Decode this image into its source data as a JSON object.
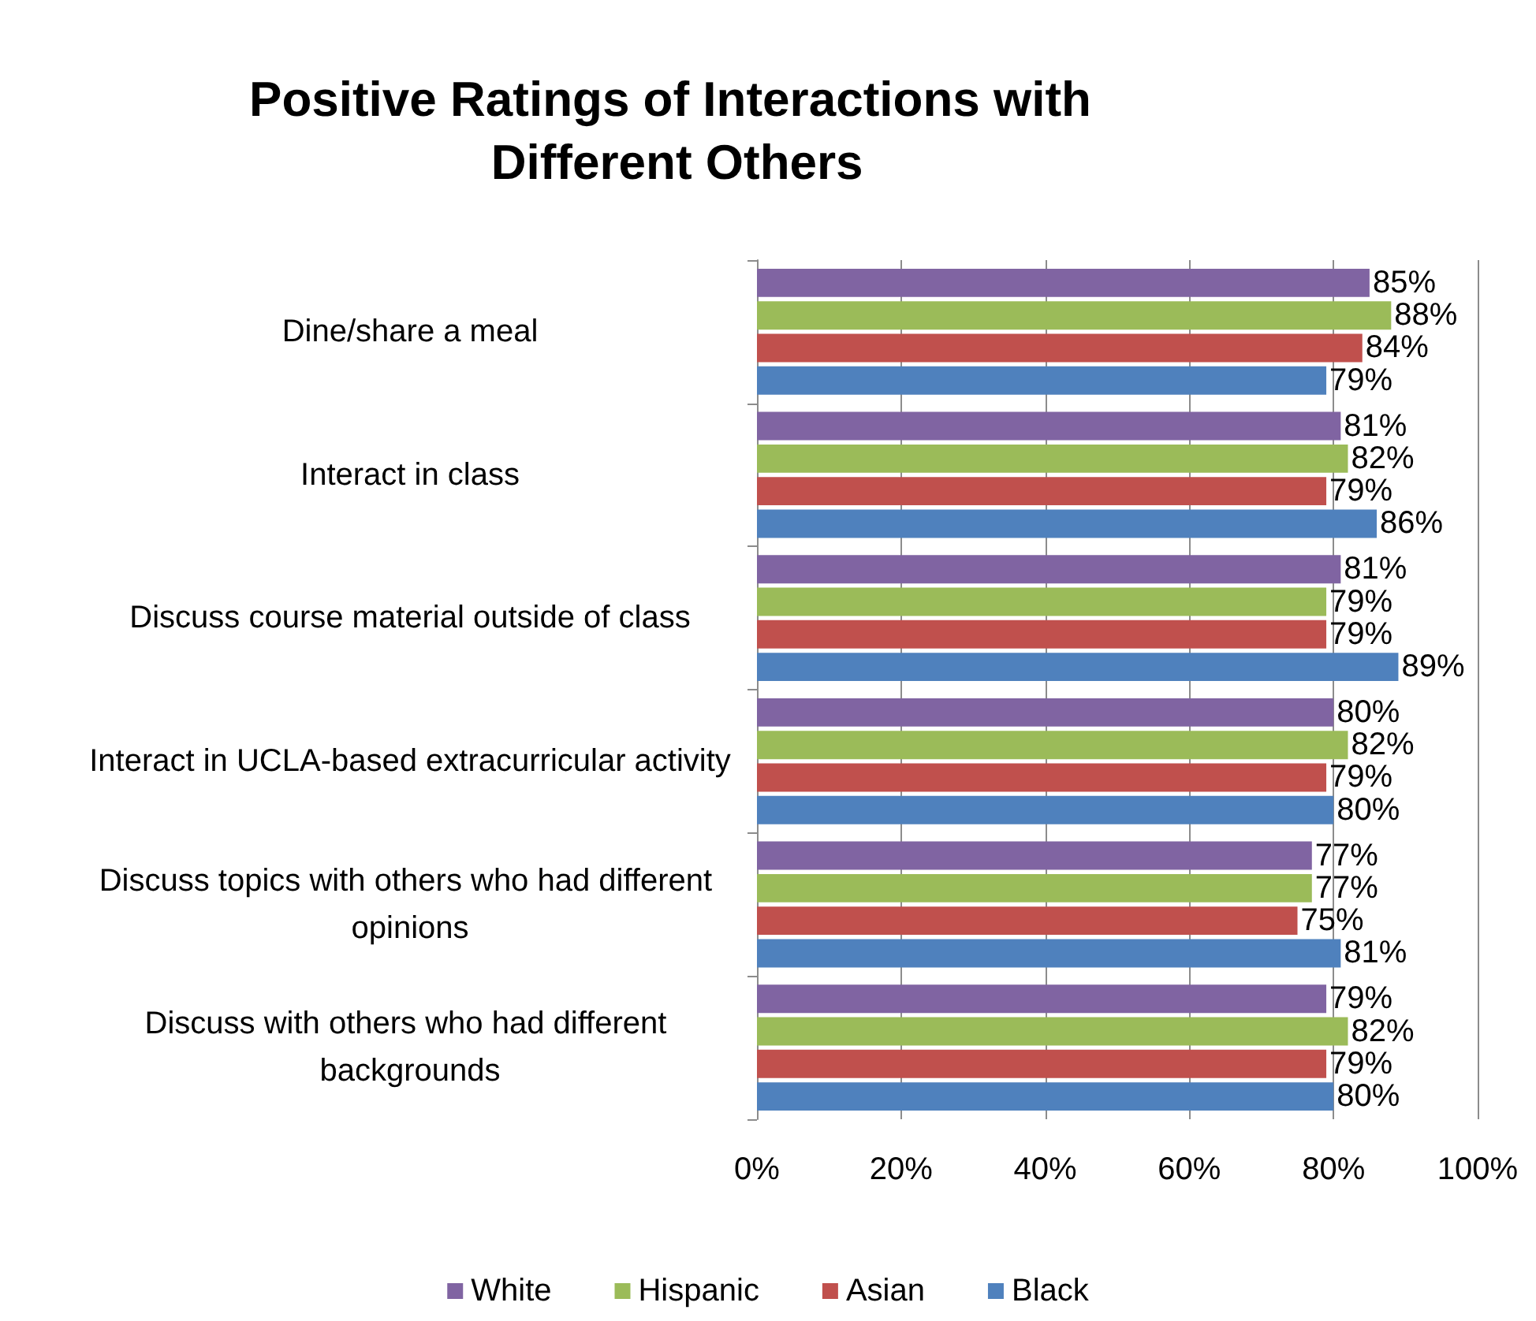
{
  "chart_data": {
    "type": "bar",
    "orientation": "horizontal",
    "title": "Positive Ratings of Interactions with Different Others",
    "categories": [
      "Dine/share a meal",
      "Interact in class",
      "Discuss course material outside of class",
      "Interact in UCLA-based extracurricular activity",
      "Discuss topics with others who had different opinions",
      "Discuss with others who had different backgrounds"
    ],
    "series": [
      {
        "name": "White",
        "color": "#8064a2",
        "values": [
          85,
          81,
          81,
          80,
          77,
          79
        ],
        "value_labels": [
          "85%",
          "81%",
          "81%",
          "80%",
          "77%",
          "79%"
        ]
      },
      {
        "name": "Hispanic",
        "color": "#9bbb59",
        "values": [
          88,
          82,
          79,
          82,
          77,
          82
        ],
        "value_labels": [
          "88%",
          "82%",
          "79%",
          "82%",
          "77%",
          "82%"
        ]
      },
      {
        "name": "Asian",
        "color": "#c0504d",
        "values": [
          84,
          79,
          79,
          79,
          75,
          79
        ],
        "value_labels": [
          "84%",
          "79%",
          "79%",
          "79%",
          "75%",
          "79%"
        ]
      },
      {
        "name": "Black",
        "color": "#4f81bd",
        "values": [
          79,
          86,
          89,
          80,
          81,
          80
        ],
        "value_labels": [
          "79%",
          "86%",
          "89%",
          "80%",
          "81%",
          "80%"
        ]
      }
    ],
    "xlim": [
      0,
      100
    ],
    "xticks": [
      {
        "value": 0,
        "label": "0%"
      },
      {
        "value": 20,
        "label": "20%"
      },
      {
        "value": 40,
        "label": "40%"
      },
      {
        "value": 60,
        "label": "60%"
      },
      {
        "value": 80,
        "label": "80%"
      },
      {
        "value": 100,
        "label": "100%"
      }
    ],
    "grid": "x",
    "legend": "bottom"
  }
}
